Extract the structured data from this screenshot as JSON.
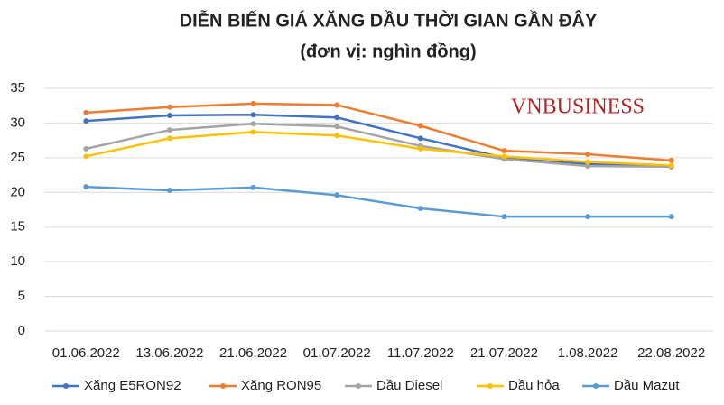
{
  "chart_data": {
    "type": "line",
    "title": "DIỄN BIẾN GIÁ XĂNG DẦU THỜI GIAN GẦN ĐÂY",
    "subtitle": "(đơn vị: nghìn đồng)",
    "watermark": "VNBUSINESS",
    "categories": [
      "01.06.2022",
      "13.06.2022",
      "21.06.2022",
      "01.07.2022",
      "11.07.2022",
      "21.07.2022",
      "1.08.2022",
      "22.08.2022"
    ],
    "series": [
      {
        "name": "Xăng E5RON92",
        "color": "#4472c4",
        "values": [
          30.3,
          31.1,
          31.2,
          30.8,
          27.8,
          25.0,
          24.1,
          23.7
        ]
      },
      {
        "name": "Xăng RON95",
        "color": "#ed7d31",
        "values": [
          31.5,
          32.3,
          32.8,
          32.6,
          29.6,
          26.0,
          25.5,
          24.6
        ]
      },
      {
        "name": "Dầu Diesel",
        "color": "#a5a5a5",
        "values": [
          26.3,
          29.0,
          29.9,
          29.5,
          26.7,
          24.8,
          23.8,
          23.7
        ]
      },
      {
        "name": "Dầu hỏa",
        "color": "#ffc000",
        "values": [
          25.2,
          27.8,
          28.7,
          28.2,
          26.3,
          25.2,
          24.4,
          23.9
        ]
      },
      {
        "name": "Dầu Mazut",
        "color": "#5b9bd5",
        "values": [
          20.8,
          20.3,
          20.7,
          19.6,
          17.7,
          16.5,
          16.5,
          16.5
        ]
      }
    ],
    "ylim": [
      0,
      35
    ],
    "yticks": [
      0,
      5,
      10,
      15,
      20,
      25,
      30,
      35
    ],
    "grid": true,
    "legend": "bottom"
  }
}
